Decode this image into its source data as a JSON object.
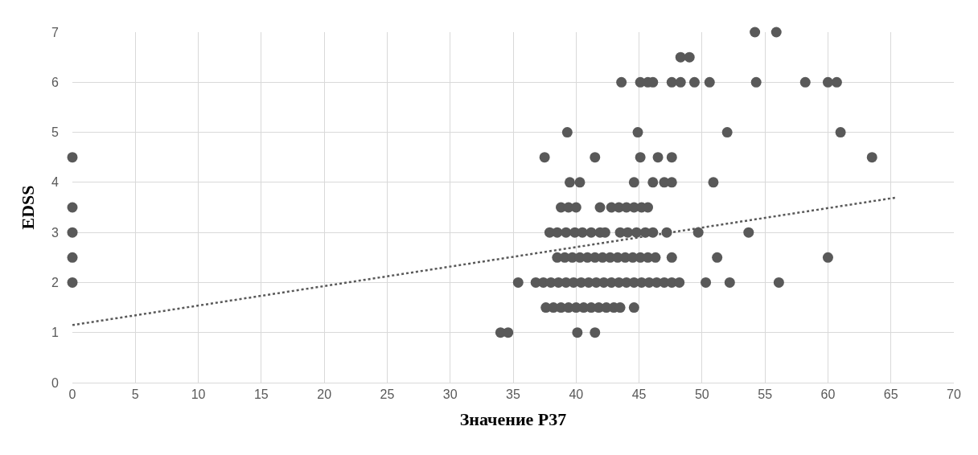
{
  "chart_data": {
    "type": "scatter",
    "xlabel": "Значение P37",
    "ylabel": "EDSS",
    "xlim": [
      0,
      70
    ],
    "xticks": [
      0,
      5,
      10,
      15,
      20,
      25,
      30,
      35,
      40,
      45,
      50,
      55,
      60,
      65,
      70
    ],
    "ylim": [
      0,
      7
    ],
    "yticks": [
      0,
      1,
      2,
      3,
      4,
      5,
      6,
      7
    ],
    "grid": true,
    "marker": "circle",
    "series": [
      {
        "color": "#595959",
        "x": [
          0,
          0,
          0,
          0,
          0,
          34.0,
          34.6,
          40.1,
          41.5,
          37.6,
          38.2,
          38.8,
          39.4,
          40.0,
          40.6,
          41.2,
          41.8,
          42.4,
          43.0,
          43.5,
          44.6,
          35.4,
          36.8,
          37.4,
          38.0,
          38.6,
          39.2,
          39.8,
          40.4,
          41.0,
          41.6,
          42.2,
          42.8,
          43.4,
          44.0,
          44.6,
          45.2,
          45.8,
          46.4,
          47.0,
          47.6,
          48.2,
          50.3,
          52.2,
          56.1,
          38.5,
          39.1,
          39.7,
          40.3,
          40.9,
          41.5,
          42.1,
          42.7,
          43.3,
          43.9,
          44.5,
          45.1,
          45.7,
          46.3,
          47.6,
          51.2,
          60.0,
          37.9,
          38.5,
          39.2,
          39.9,
          40.5,
          41.2,
          41.9,
          42.3,
          43.5,
          44.1,
          44.8,
          45.5,
          46.1,
          47.2,
          49.7,
          53.7,
          38.8,
          39.4,
          40.0,
          41.9,
          42.8,
          43.4,
          44.0,
          44.6,
          45.2,
          45.7,
          39.5,
          40.3,
          44.6,
          46.1,
          47.0,
          47.6,
          50.9,
          37.5,
          41.5,
          45.1,
          46.5,
          47.6,
          63.5,
          39.3,
          44.9,
          52.0,
          61.0,
          43.6,
          45.1,
          45.7,
          46.1,
          47.6,
          48.3,
          49.4,
          50.6,
          54.3,
          58.2,
          60.0,
          60.7,
          48.3,
          49.0,
          54.2,
          55.9
        ],
        "values": [
          2,
          2.5,
          3,
          3.5,
          4.5,
          1,
          1,
          1,
          1,
          1.5,
          1.5,
          1.5,
          1.5,
          1.5,
          1.5,
          1.5,
          1.5,
          1.5,
          1.5,
          1.5,
          1.5,
          2,
          2,
          2,
          2,
          2,
          2,
          2,
          2,
          2,
          2,
          2,
          2,
          2,
          2,
          2,
          2,
          2,
          2,
          2,
          2,
          2,
          2,
          2,
          2,
          2.5,
          2.5,
          2.5,
          2.5,
          2.5,
          2.5,
          2.5,
          2.5,
          2.5,
          2.5,
          2.5,
          2.5,
          2.5,
          2.5,
          2.5,
          2.5,
          2.5,
          3,
          3,
          3,
          3,
          3,
          3,
          3,
          3,
          3,
          3,
          3,
          3,
          3,
          3,
          3,
          3,
          3.5,
          3.5,
          3.5,
          3.5,
          3.5,
          3.5,
          3.5,
          3.5,
          3.5,
          3.5,
          4,
          4,
          4,
          4,
          4,
          4,
          4,
          4.5,
          4.5,
          4.5,
          4.5,
          4.5,
          4.5,
          5,
          5,
          5,
          5,
          6,
          6,
          6,
          6,
          6,
          6,
          6,
          6,
          6,
          6,
          6,
          6,
          6.5,
          6.5,
          7,
          7
        ]
      },
      {
        "type": "line",
        "color": "#595959",
        "line_style": "dotted",
        "marker": "none",
        "x": [
          0,
          65.5
        ],
        "values": [
          1.15,
          3.7
        ]
      }
    ]
  }
}
